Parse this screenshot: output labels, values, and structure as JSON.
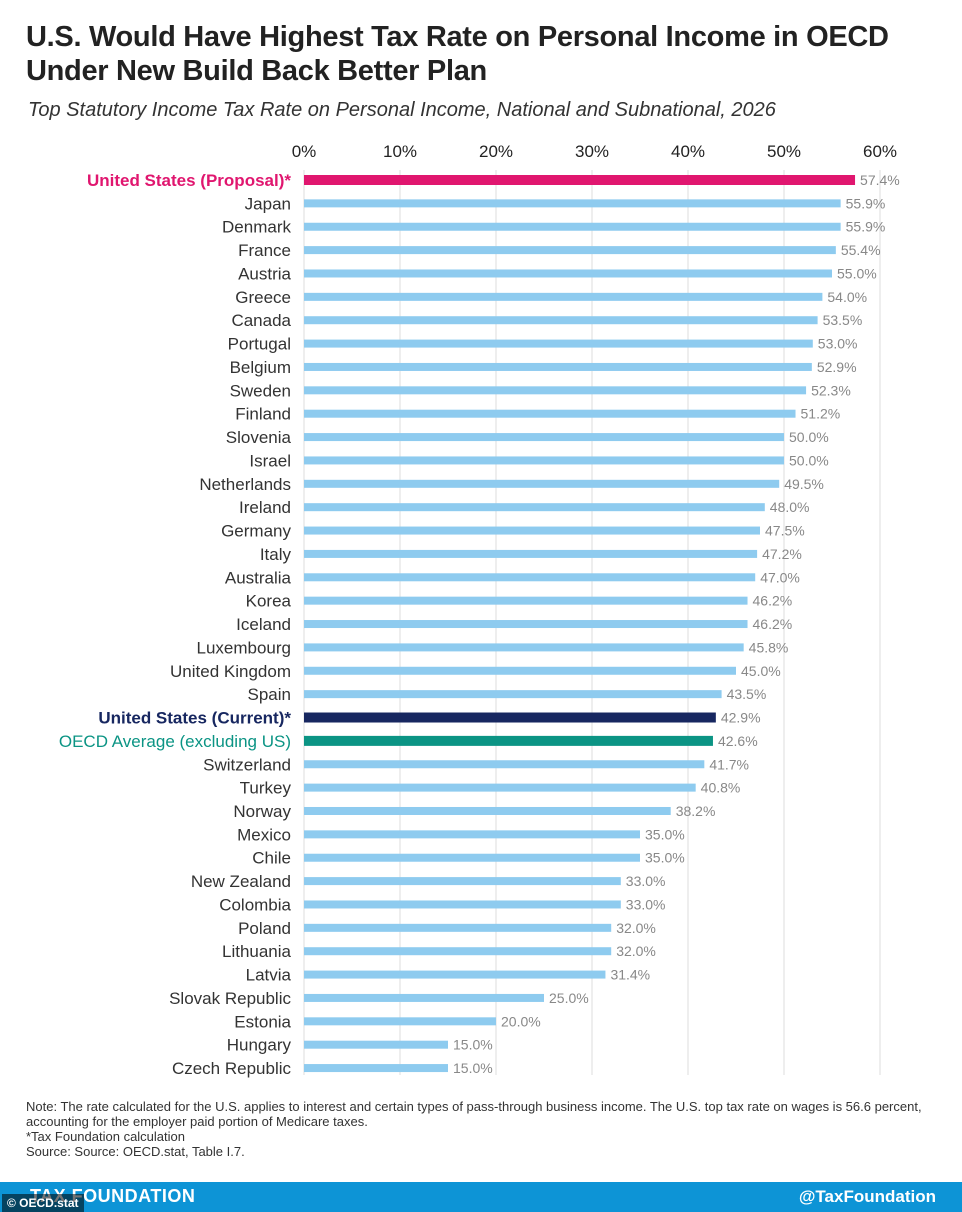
{
  "header": {
    "title_line1": "U.S. Would Have Highest Tax Rate on Personal Income in OECD",
    "title_line2": "Under New Build Back Better Plan",
    "subtitle": "Top Statutory Income Tax Rate on Personal Income, National and Subnational, 2026"
  },
  "chart_data": {
    "type": "bar",
    "orientation": "horizontal",
    "xlim": [
      0,
      60
    ],
    "ticks": [
      "0%",
      "10%",
      "20%",
      "30%",
      "40%",
      "50%",
      "60%"
    ],
    "grid": true,
    "categories": [
      "United States (Proposal)*",
      "Japan",
      "Denmark",
      "France",
      "Austria",
      "Greece",
      "Canada",
      "Portugal",
      "Belgium",
      "Sweden",
      "Finland",
      "Slovenia",
      "Israel",
      "Netherlands",
      "Ireland",
      "Germany",
      "Italy",
      "Australia",
      "Korea",
      "Iceland",
      "Luxembourg",
      "United Kingdom",
      "Spain",
      "United States (Current)*",
      "OECD Average (excluding US)",
      "Switzerland",
      "Turkey",
      "Norway",
      "Mexico",
      "Chile",
      "New Zealand",
      "Colombia",
      "Poland",
      "Lithuania",
      "Latvia",
      "Slovak Republic",
      "Estonia",
      "Hungary",
      "Czech Republic"
    ],
    "values": [
      57.4,
      55.9,
      55.9,
      55.4,
      55.0,
      54.0,
      53.5,
      53.0,
      52.9,
      52.3,
      51.2,
      50.0,
      50.0,
      49.5,
      48.0,
      47.5,
      47.2,
      47.0,
      46.2,
      46.2,
      45.8,
      45.0,
      43.5,
      42.9,
      42.6,
      41.7,
      40.8,
      38.2,
      35.0,
      35.0,
      33.0,
      33.0,
      32.0,
      32.0,
      31.4,
      25.0,
      20.0,
      15.0,
      15.0
    ],
    "value_labels": [
      "57.4%",
      "55.9%",
      "55.9%",
      "55.4%",
      "55.0%",
      "54.0%",
      "53.5%",
      "53.0%",
      "52.9%",
      "52.3%",
      "51.2%",
      "50.0%",
      "50.0%",
      "49.5%",
      "48.0%",
      "47.5%",
      "47.2%",
      "47.0%",
      "46.2%",
      "46.2%",
      "45.8%",
      "45.0%",
      "43.5%",
      "42.9%",
      "42.6%",
      "41.7%",
      "40.8%",
      "38.2%",
      "35.0%",
      "35.0%",
      "33.0%",
      "33.0%",
      "32.0%",
      "32.0%",
      "31.4%",
      "25.0%",
      "20.0%",
      "15.0%",
      "15.0%"
    ],
    "colors": {
      "default": "#8ecbef",
      "United States (Proposal)*": "#e0166f",
      "United States (Current)*": "#172760",
      "OECD Average (excluding US)": "#0b9484"
    },
    "label_colors": {
      "default": "#333333",
      "United States (Proposal)*": "#e0166f",
      "United States (Current)*": "#172760",
      "OECD Average (excluding US)": "#0b9484"
    },
    "bold_labels": [
      "United States (Proposal)*",
      "United States (Current)*"
    ],
    "grid_color": "#dcdcdc",
    "value_label_color": "#888888"
  },
  "notes": {
    "note": "Note: The rate calculated for the U.S. applies to interest and certain types of pass-through business income. The U.S. top tax rate on wages is 56.6 percent, accounting for the employer paid portion of Medicare taxes.",
    "footnote": "*Tax Foundation calculation",
    "source": "Source: Source: OECD.stat, Table I.7."
  },
  "footer": {
    "brand": "TAX FOUNDATION",
    "handle": "@TaxFoundation",
    "credit": "© OECD.stat",
    "background": "#0d94d6"
  }
}
